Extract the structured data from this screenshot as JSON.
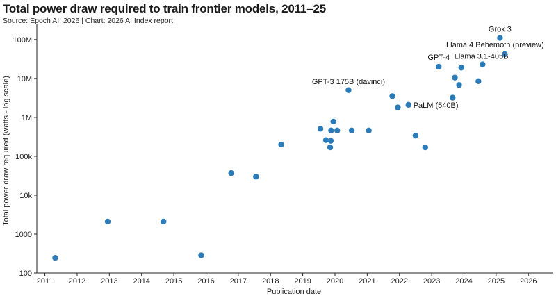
{
  "header": {
    "title": "Total power draw required to train frontier models, 2011–25",
    "subtitle": "Source: Epoch AI, 2026 | Chart: 2026 AI Index report"
  },
  "chart_data": {
    "type": "scatter",
    "xlabel": "Publication date",
    "ylabel": "Total power draw required (watts - log scale)",
    "y_scale": "log",
    "xlim": [
      2010.75,
      2026.75
    ],
    "ylim": [
      100,
      200000000
    ],
    "x_ticks": [
      "2011",
      "2012",
      "2013",
      "2014",
      "2015",
      "2016",
      "2017",
      "2018",
      "2019",
      "2020",
      "2021",
      "2022",
      "2023",
      "2024",
      "2025",
      "2026"
    ],
    "y_ticks": [
      {
        "value": 100,
        "label": "100"
      },
      {
        "value": 1000,
        "label": "1000"
      },
      {
        "value": 10000,
        "label": "10k"
      },
      {
        "value": 100000,
        "label": "100k"
      },
      {
        "value": 1000000,
        "label": "1M"
      },
      {
        "value": 10000000,
        "label": "10M"
      },
      {
        "value": 100000000,
        "label": "100M"
      }
    ],
    "grid": false,
    "point_color": "#2b7bb9",
    "points": [
      {
        "x": 2011.32,
        "y": 245
      },
      {
        "x": 2012.95,
        "y": 2100
      },
      {
        "x": 2014.68,
        "y": 2100
      },
      {
        "x": 2015.85,
        "y": 285
      },
      {
        "x": 2016.78,
        "y": 37000
      },
      {
        "x": 2017.55,
        "y": 30000
      },
      {
        "x": 2018.33,
        "y": 200000
      },
      {
        "x": 2019.55,
        "y": 510000
      },
      {
        "x": 2019.72,
        "y": 260000
      },
      {
        "x": 2019.85,
        "y": 170000
      },
      {
        "x": 2019.87,
        "y": 250000
      },
      {
        "x": 2019.88,
        "y": 460000
      },
      {
        "x": 2019.95,
        "y": 780000
      },
      {
        "x": 2020.07,
        "y": 460000
      },
      {
        "x": 2020.42,
        "y": 5000000,
        "label": "GPT-3 175B (davinci)"
      },
      {
        "x": 2020.52,
        "y": 460000
      },
      {
        "x": 2021.05,
        "y": 460000
      },
      {
        "x": 2021.78,
        "y": 3500000
      },
      {
        "x": 2021.95,
        "y": 1800000
      },
      {
        "x": 2022.28,
        "y": 2100000,
        "label": "PaLM (540B)"
      },
      {
        "x": 2022.5,
        "y": 340000
      },
      {
        "x": 2022.8,
        "y": 170000
      },
      {
        "x": 2023.22,
        "y": 20000000,
        "label": "GPT-4"
      },
      {
        "x": 2023.65,
        "y": 3200000
      },
      {
        "x": 2023.72,
        "y": 10500000
      },
      {
        "x": 2023.85,
        "y": 6800000
      },
      {
        "x": 2023.92,
        "y": 19000000,
        "label": "Llama 3.1-405B"
      },
      {
        "x": 2024.45,
        "y": 8500000
      },
      {
        "x": 2024.58,
        "y": 23000000
      },
      {
        "x": 2025.12,
        "y": 110000000,
        "label": "Grok 3"
      },
      {
        "x": 2025.27,
        "y": 42000000,
        "label": "Llama 4 Behemoth (preview)"
      }
    ]
  }
}
